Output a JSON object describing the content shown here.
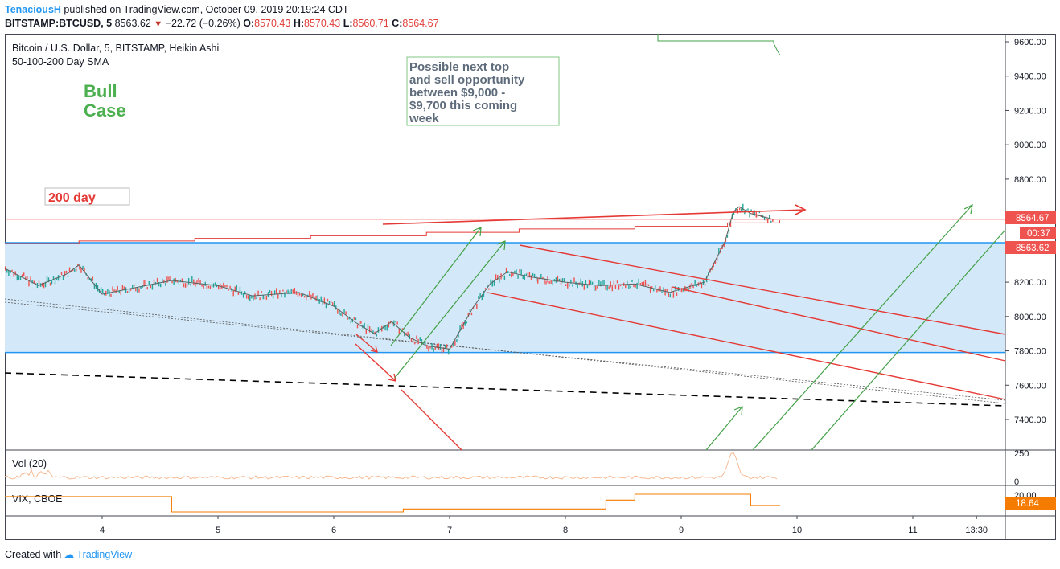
{
  "header": {
    "author": "TenaciousH",
    "published": "published on TradingView.com, October 09, 2019 20:19:24 CDT",
    "symbol": "BITSTAMP:BTCUSD, 5",
    "last": "8563.62",
    "change_arrow": "▼",
    "change": "−22.72 (−0.26%)",
    "o_label": "O:",
    "o_val": "8570.43",
    "h_label": "H:",
    "h_val": "8570.43",
    "l_label": "L:",
    "l_val": "8560.71",
    "c_label": "C:",
    "c_val": "8564.67"
  },
  "legend": {
    "title": "Bitcoin / U.S. Dollar, 5, BITSTAMP, Heikin Ashi",
    "sma": "50-100-200 Day SMA"
  },
  "annotations": {
    "bull_line1": "Bull",
    "bull_line2": "Case",
    "day200": "200 day",
    "note_lines": [
      "Possible next top",
      "and sell opportunity",
      "between $9,000 -",
      "$9,700 this coming",
      "week"
    ]
  },
  "price_labels": {
    "current": "8564.67",
    "countdown": "00:37",
    "prev": "8563.62",
    "vix": "18.64"
  },
  "panes": {
    "vol_title": "Vol (20)",
    "vix_title": "VIX, CBOE"
  },
  "footer": {
    "created": "Created with",
    "brand": "TradingView"
  },
  "colors": {
    "up": "#26a69a",
    "down": "#ef5350",
    "accent": "#2196f3",
    "trend_red": "#e53935",
    "trend_green": "#43a047",
    "vix": "#f57c00"
  },
  "chart_data": {
    "type": "line",
    "title": "Bitcoin / U.S. Dollar, 5, BITSTAMP, Heikin Ashi",
    "chart_style": "heikin-ashi candles",
    "ylim": [
      7200,
      9650
    ],
    "yticks": [
      9600,
      9400,
      9200,
      9000,
      8800,
      8600,
      8400,
      8200,
      8000,
      7800,
      7600,
      7400
    ],
    "x": [
      3.15,
      3.45,
      3.7,
      3.8,
      4.0,
      4.3,
      4.6,
      5.0,
      5.3,
      5.7,
      6.0,
      6.2,
      6.35,
      6.5,
      6.65,
      6.8,
      7.0,
      7.2,
      7.35,
      7.5,
      7.7,
      8.0,
      8.3,
      8.6,
      8.9,
      9.2,
      9.38,
      9.45,
      9.5,
      9.6,
      9.8
    ],
    "series": [
      {
        "name": "BTCUSD",
        "values": [
          8280,
          8180,
          8250,
          8300,
          8130,
          8170,
          8210,
          8180,
          8120,
          8140,
          8060,
          7960,
          7900,
          7970,
          7880,
          7830,
          7810,
          8050,
          8190,
          8260,
          8230,
          8200,
          8180,
          8190,
          8140,
          8200,
          8440,
          8610,
          8640,
          8600,
          8565
        ]
      }
    ],
    "x_ticks": [
      "4",
      "5",
      "6",
      "7",
      "8",
      "9",
      "10",
      "11",
      "13:30"
    ],
    "x_tick_positions": [
      4,
      5,
      6,
      7,
      8,
      9,
      10,
      11,
      11.55
    ],
    "xlim": [
      3.15,
      11.9
    ],
    "support_zone": [
      7790,
      8430
    ],
    "ma_200_day": {
      "x": [
        3.15,
        3.8,
        4.8,
        5.8,
        6.8,
        7.6,
        8.6,
        9.4,
        9.85
      ],
      "values": [
        8425,
        8440,
        8455,
        8470,
        8490,
        8510,
        8525,
        8545,
        8560
      ]
    },
    "volume": {
      "title": "Vol (20)",
      "ylim": [
        0,
        250
      ],
      "yticks": [
        250,
        0
      ]
    },
    "vix": {
      "title": "VIX, CBOE",
      "ytick": 20.0,
      "last": 18.64,
      "x": [
        3.15,
        4.35,
        4.6,
        6.35,
        6.6,
        8.35,
        8.6,
        9.35,
        9.6,
        9.85
      ],
      "values": [
        20.2,
        20.2,
        17.6,
        17.6,
        18.1,
        19.6,
        20.6,
        20.6,
        18.7,
        18.64
      ]
    }
  }
}
